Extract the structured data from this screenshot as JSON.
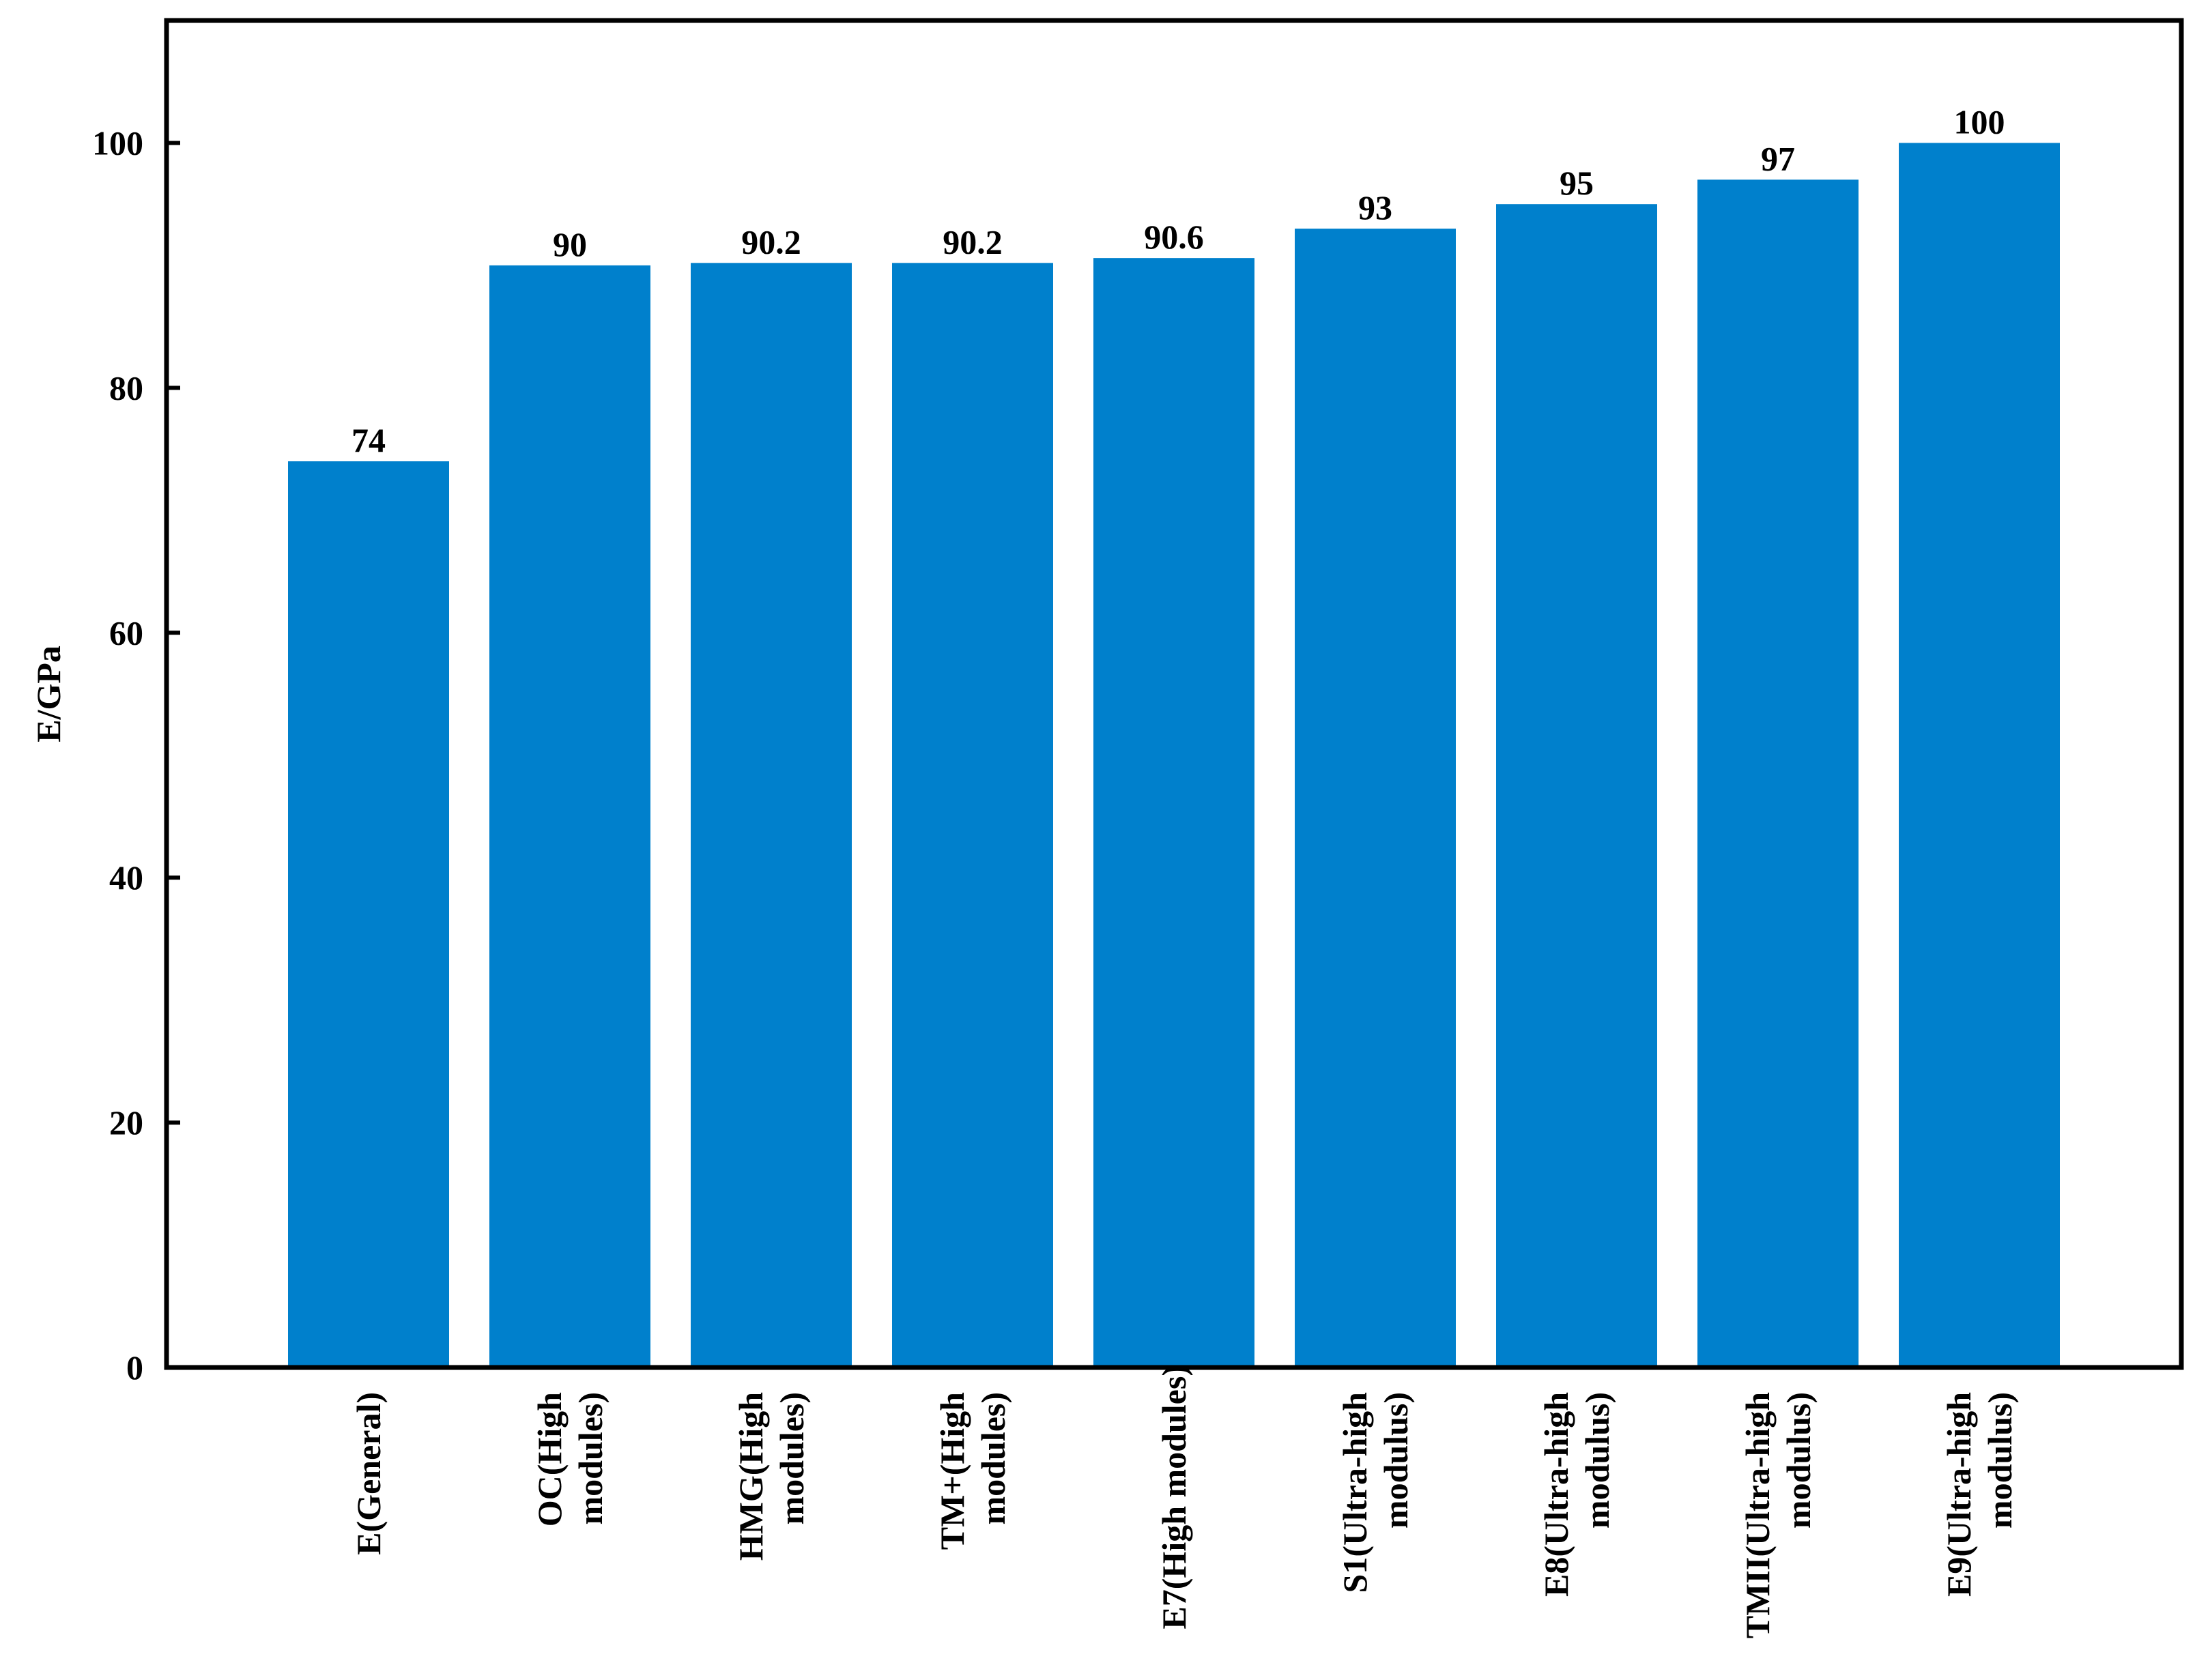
{
  "chart_data": {
    "type": "bar",
    "title": "",
    "xlabel": "",
    "ylabel": "E/GPa",
    "ylim": [
      0,
      110
    ],
    "yticks": [
      0,
      20,
      40,
      60,
      80,
      100
    ],
    "grid": false,
    "legend": "none",
    "bar_color": "#0080cc",
    "categories": [
      [
        "E(General)"
      ],
      [
        "OC(High",
        "modules)"
      ],
      [
        "HMG(High",
        "modules)"
      ],
      [
        "TM+(High",
        "modules)"
      ],
      [
        "E7(High modules)"
      ],
      [
        "S1(Ultra-high",
        "modulus)"
      ],
      [
        "E8(Ultra-high",
        "modulus)"
      ],
      [
        "TMII(Ultra-high",
        "modulus)"
      ],
      [
        "E9(Ultra-high",
        "modulus)"
      ]
    ],
    "values": [
      74,
      90,
      90.2,
      90.2,
      90.6,
      93,
      95,
      97,
      100
    ],
    "value_labels": [
      "74",
      "90",
      "90.2",
      "90.2",
      "90.6",
      "93",
      "95",
      "97",
      "100"
    ]
  }
}
